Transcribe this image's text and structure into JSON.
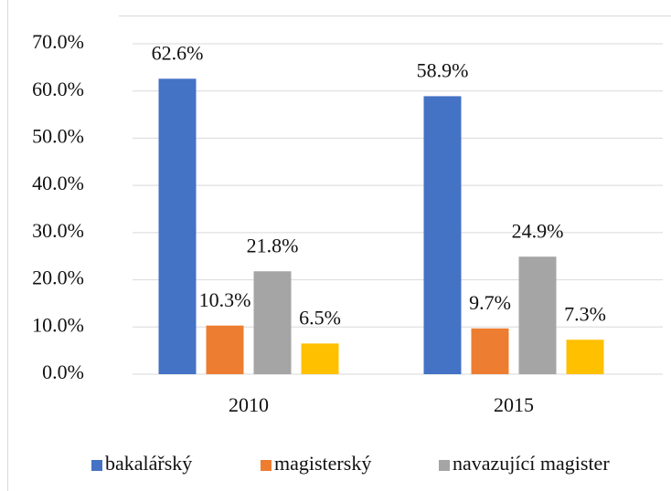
{
  "chart_data": {
    "type": "bar",
    "categories": [
      "2010",
      "2015"
    ],
    "series": [
      {
        "name": "bakalářský",
        "color": "#4472c4",
        "values": [
          62.6,
          58.9
        ],
        "value_labels": [
          "62.6%",
          "58.9%"
        ]
      },
      {
        "name": "magisterský",
        "color": "#ed7d31",
        "values": [
          10.3,
          9.7
        ],
        "value_labels": [
          "10.3%",
          "9.7%"
        ]
      },
      {
        "name": "navazující magister",
        "color": "#a5a5a5",
        "values": [
          21.8,
          24.9
        ],
        "value_labels": [
          "21.8%",
          "24.9%"
        ]
      },
      {
        "name": null,
        "color": "#ffc000",
        "values": [
          6.5,
          7.3
        ],
        "value_labels": [
          "6.5%",
          "7.3%"
        ]
      }
    ],
    "ylim": [
      0,
      70
    ],
    "yticks": [
      {
        "value": 0,
        "label": "0.0%"
      },
      {
        "value": 10,
        "label": "10.0%"
      },
      {
        "value": 20,
        "label": "20.0%"
      },
      {
        "value": 30,
        "label": "30.0%"
      },
      {
        "value": 40,
        "label": "40.0%"
      },
      {
        "value": 50,
        "label": "50.0%"
      },
      {
        "value": 60,
        "label": "60.0%"
      },
      {
        "value": 70,
        "label": "70.0%"
      }
    ],
    "grid": true,
    "legend": "bottom"
  }
}
